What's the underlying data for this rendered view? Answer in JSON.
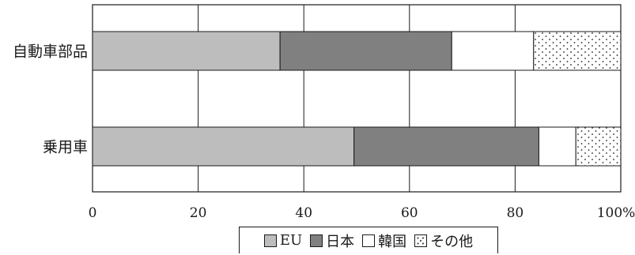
{
  "chart_data": {
    "type": "bar",
    "orientation": "horizontal",
    "stacked": true,
    "categories": [
      "自動車部品",
      "乗用車"
    ],
    "series": [
      {
        "name": "EU",
        "values": [
          35.5,
          49.5
        ],
        "color": "#bdbdbd",
        "pattern": "solid"
      },
      {
        "name": "日本",
        "values": [
          32.5,
          35.0
        ],
        "color": "#808080",
        "pattern": "solid"
      },
      {
        "name": "韓国",
        "values": [
          15.5,
          7.0
        ],
        "color": "#ffffff",
        "pattern": "solid"
      },
      {
        "name": "その他",
        "values": [
          16.5,
          8.5
        ],
        "color": "#ffffff",
        "pattern": "dots"
      }
    ],
    "xlim": [
      0,
      100
    ],
    "x_ticks": [
      "0",
      "20",
      "40",
      "60",
      "80",
      "100%"
    ],
    "grid": true,
    "legend_position": "bottom"
  }
}
